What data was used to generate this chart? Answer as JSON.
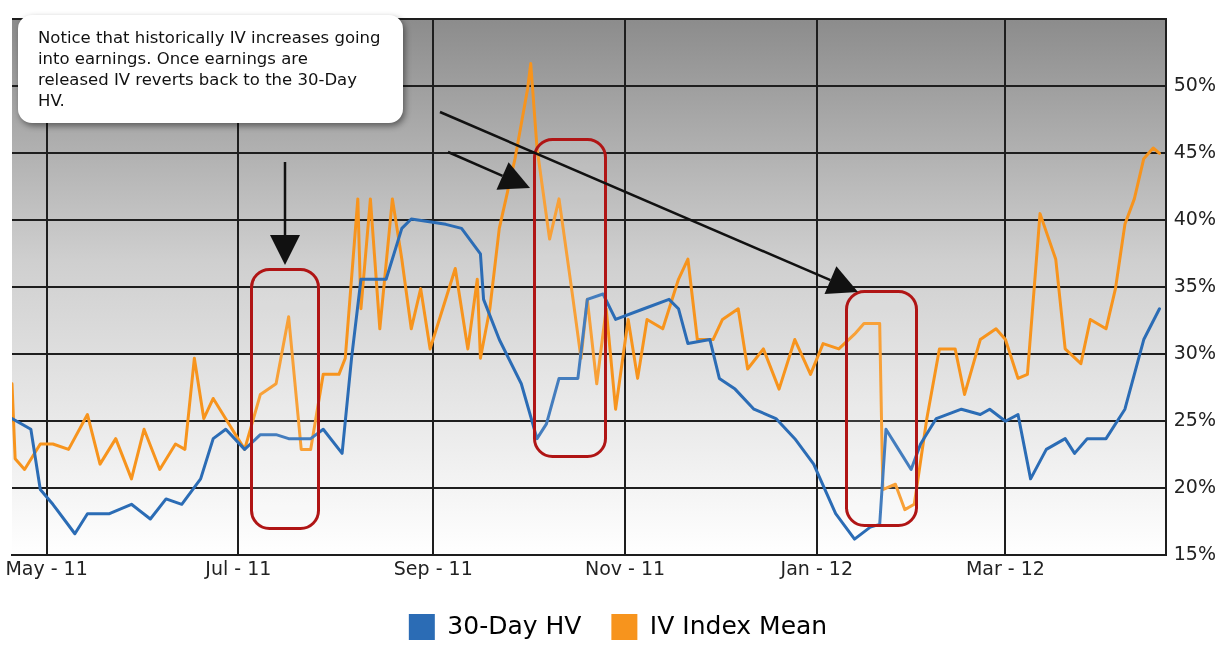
{
  "chart_data": {
    "type": "line",
    "xlim": [
      "2011-04-20",
      "2012-04-21"
    ],
    "xticks": [
      {
        "value": "2011-05-01",
        "label": "May - 11"
      },
      {
        "value": "2011-07-01",
        "label": "Jul - 11"
      },
      {
        "value": "2011-09-01",
        "label": "Sep - 11"
      },
      {
        "value": "2011-11-01",
        "label": "Nov - 11"
      },
      {
        "value": "2012-01-01",
        "label": "Jan - 12"
      },
      {
        "value": "2012-03-01",
        "label": "Mar - 12"
      }
    ],
    "ylim": [
      15,
      55
    ],
    "yticks": [
      {
        "value": 15,
        "label": "15%"
      },
      {
        "value": 20,
        "label": "20%"
      },
      {
        "value": 25,
        "label": "25%"
      },
      {
        "value": 30,
        "label": "30%"
      },
      {
        "value": 35,
        "label": "35%"
      },
      {
        "value": 40,
        "label": "40%"
      },
      {
        "value": 45,
        "label": "45%"
      },
      {
        "value": 50,
        "label": "50%"
      },
      {
        "value": 55,
        "label": null
      }
    ],
    "grid": true,
    "legend": "bottom",
    "marker": "none",
    "annotations": [
      "Notice that historically IV increases going into earnings. Once earnings are released IV reverts back to the 30-Day HV."
    ],
    "series": [
      {
        "name": "30-Day HV",
        "color": "#2b6cb5",
        "x": [
          "2011-04-20",
          "2011-04-26",
          "2011-04-29",
          "2011-05-03",
          "2011-05-10",
          "2011-05-14",
          "2011-05-21",
          "2011-05-28",
          "2011-06-03",
          "2011-06-08",
          "2011-06-13",
          "2011-06-19",
          "2011-06-23",
          "2011-06-27",
          "2011-07-03",
          "2011-07-08",
          "2011-07-13",
          "2011-07-17",
          "2011-07-24",
          "2011-07-28",
          "2011-08-03",
          "2011-08-06",
          "2011-08-09",
          "2011-08-17",
          "2011-08-22",
          "2011-08-25",
          "2011-09-05",
          "2011-09-10",
          "2011-09-16",
          "2011-09-17",
          "2011-09-22",
          "2011-09-29",
          "2011-10-04",
          "2011-10-07",
          "2011-10-11",
          "2011-10-17",
          "2011-10-20",
          "2011-10-25",
          "2011-10-29",
          "2011-11-07",
          "2011-11-15",
          "2011-11-18",
          "2011-11-21",
          "2011-11-28",
          "2011-12-01",
          "2011-12-06",
          "2011-12-12",
          "2011-12-19",
          "2011-12-25",
          "2011-12-31",
          "2012-01-07",
          "2012-01-13",
          "2012-01-18",
          "2012-01-21",
          "2012-01-23",
          "2012-01-27",
          "2012-01-31",
          "2012-02-03",
          "2012-02-08",
          "2012-02-16",
          "2012-02-22",
          "2012-02-25",
          "2012-03-01",
          "2012-03-05",
          "2012-03-09",
          "2012-03-14",
          "2012-03-20",
          "2012-03-23",
          "2012-03-27",
          "2012-04-02",
          "2012-04-08",
          "2012-04-14",
          "2012-04-19"
        ],
        "values": [
          25.2,
          24.4,
          19.9,
          18.8,
          16.6,
          18.1,
          18.1,
          18.8,
          17.7,
          19.2,
          18.8,
          20.7,
          23.7,
          24.4,
          22.9,
          24,
          24,
          23.7,
          23.7,
          24.4,
          22.6,
          29.7,
          35.6,
          35.6,
          39.4,
          40.1,
          39.7,
          39.4,
          37.5,
          34.1,
          31.1,
          27.8,
          23.7,
          24.8,
          28.2,
          28.2,
          34.1,
          34.5,
          32.6,
          33.4,
          34.1,
          33.4,
          30.8,
          31.1,
          28.2,
          27.4,
          25.9,
          25.2,
          23.7,
          21.8,
          18.1,
          16.2,
          17.1,
          17.3,
          24.4,
          22.9,
          21.4,
          23.3,
          25.2,
          25.9,
          25.5,
          25.9,
          25,
          25.5,
          20.7,
          22.9,
          23.7,
          22.6,
          23.7,
          23.7,
          25.9,
          31.1,
          33.4
        ]
      },
      {
        "name": "IV Index Mean",
        "color": "#f7941d",
        "x": [
          "2011-04-20",
          "2011-04-21",
          "2011-04-24",
          "2011-04-29",
          "2011-05-03",
          "2011-05-08",
          "2011-05-14",
          "2011-05-18",
          "2011-05-23",
          "2011-05-28",
          "2011-06-01",
          "2011-06-06",
          "2011-06-11",
          "2011-06-14",
          "2011-06-17",
          "2011-06-20",
          "2011-06-23",
          "2011-06-28",
          "2011-07-03",
          "2011-07-08",
          "2011-07-13",
          "2011-07-17",
          "2011-07-21",
          "2011-07-24",
          "2011-07-28",
          "2011-08-02",
          "2011-08-04",
          "2011-08-08",
          "2011-08-09",
          "2011-08-12",
          "2011-08-15",
          "2011-08-19",
          "2011-08-22",
          "2011-08-25",
          "2011-08-28",
          "2011-08-31",
          "2011-09-04",
          "2011-09-08",
          "2011-09-12",
          "2011-09-15",
          "2011-09-16",
          "2011-09-19",
          "2011-09-22",
          "2011-09-27",
          "2011-10-01",
          "2011-10-02",
          "2011-10-04",
          "2011-10-08",
          "2011-10-11",
          "2011-10-15",
          "2011-10-18",
          "2011-10-20",
          "2011-10-23",
          "2011-10-26",
          "2011-10-29",
          "2011-11-02",
          "2011-11-05",
          "2011-11-08",
          "2011-11-13",
          "2011-11-18",
          "2011-11-21",
          "2011-11-24",
          "2011-11-29",
          "2011-12-02",
          "2011-12-07",
          "2011-12-10",
          "2011-12-15",
          "2011-12-20",
          "2011-12-25",
          "2011-12-30",
          "2012-01-03",
          "2012-01-08",
          "2012-01-13",
          "2012-01-16",
          "2012-01-21",
          "2012-01-22",
          "2012-01-26",
          "2012-01-29",
          "2012-02-01",
          "2012-02-05",
          "2012-02-09",
          "2012-02-14",
          "2012-02-17",
          "2012-02-22",
          "2012-02-27",
          "2012-03-01",
          "2012-03-05",
          "2012-03-08",
          "2012-03-12",
          "2012-03-17",
          "2012-03-20",
          "2012-03-25",
          "2012-03-28",
          "2012-04-02",
          "2012-04-05",
          "2012-04-08",
          "2012-04-11",
          "2012-04-14",
          "2012-04-17",
          "2012-04-19"
        ],
        "values": [
          27.8,
          22.2,
          21.4,
          23.3,
          23.3,
          22.9,
          25.5,
          21.8,
          23.7,
          20.7,
          24.4,
          21.4,
          23.3,
          22.9,
          29.7,
          25.2,
          26.7,
          24.8,
          22.9,
          27,
          27.8,
          32.8,
          22.9,
          22.9,
          28.5,
          28.5,
          29.7,
          41.6,
          33.4,
          41.6,
          31.9,
          41.6,
          37.1,
          31.9,
          34.9,
          30.4,
          33.4,
          36.4,
          30.4,
          35.6,
          29.7,
          33.4,
          39.4,
          44.6,
          49.8,
          51.7,
          45.4,
          38.6,
          41.6,
          34.9,
          29.7,
          34.1,
          27.8,
          33.4,
          25.9,
          32.6,
          28.2,
          32.6,
          31.9,
          35.6,
          37.1,
          31.1,
          31.1,
          32.6,
          33.4,
          28.9,
          30.4,
          27.4,
          31.1,
          28.5,
          30.8,
          30.4,
          31.5,
          32.3,
          32.3,
          19.9,
          20.3,
          18.4,
          18.8,
          25.2,
          30.4,
          30.4,
          27,
          31.1,
          31.9,
          31.1,
          28.2,
          28.5,
          40.5,
          37.1,
          30.4,
          29.3,
          32.6,
          31.9,
          34.9,
          39.7,
          41.6,
          44.6,
          45.4,
          45
        ]
      }
    ]
  }
}
